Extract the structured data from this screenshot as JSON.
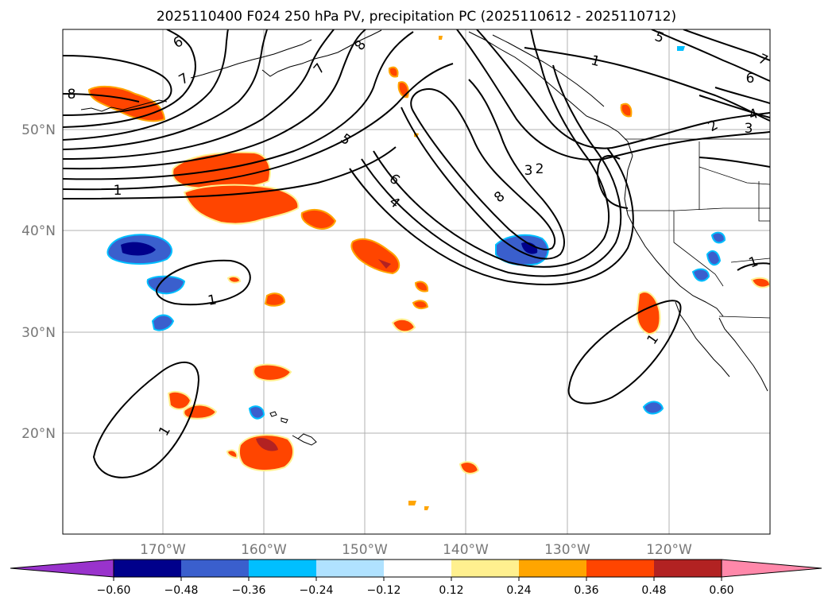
{
  "title": "2025110400 F024 250 hPa PV, precipitation PC (2025110612 - 2025110712)",
  "map": {
    "lon_labels": [
      "170°W",
      "160°W",
      "150°W",
      "140°W",
      "130°W",
      "120°W"
    ],
    "lat_labels": [
      "50°N",
      "40°N",
      "30°N",
      "20°N"
    ]
  },
  "pv_contour_labels": [
    "8",
    "6",
    "7",
    "7",
    "8",
    "5",
    "1",
    "1",
    "6",
    "4",
    "3",
    "2",
    "5",
    "6",
    "4",
    "7",
    "8",
    "3",
    "2",
    "1",
    "1",
    "1",
    "1"
  ],
  "colorbar": {
    "ticks": [
      "−0.60",
      "−0.48",
      "−0.36",
      "−0.24",
      "−0.12",
      "0.12",
      "0.24",
      "0.36",
      "0.48",
      "0.60"
    ],
    "colors": [
      "#9933cc",
      "#00008b",
      "#3a5fcd",
      "#00bfff",
      "#b0e2ff",
      "#ffffff",
      "#fff08f",
      "#ffa500",
      "#ff4500",
      "#b22222",
      "#ff88aa"
    ]
  }
}
